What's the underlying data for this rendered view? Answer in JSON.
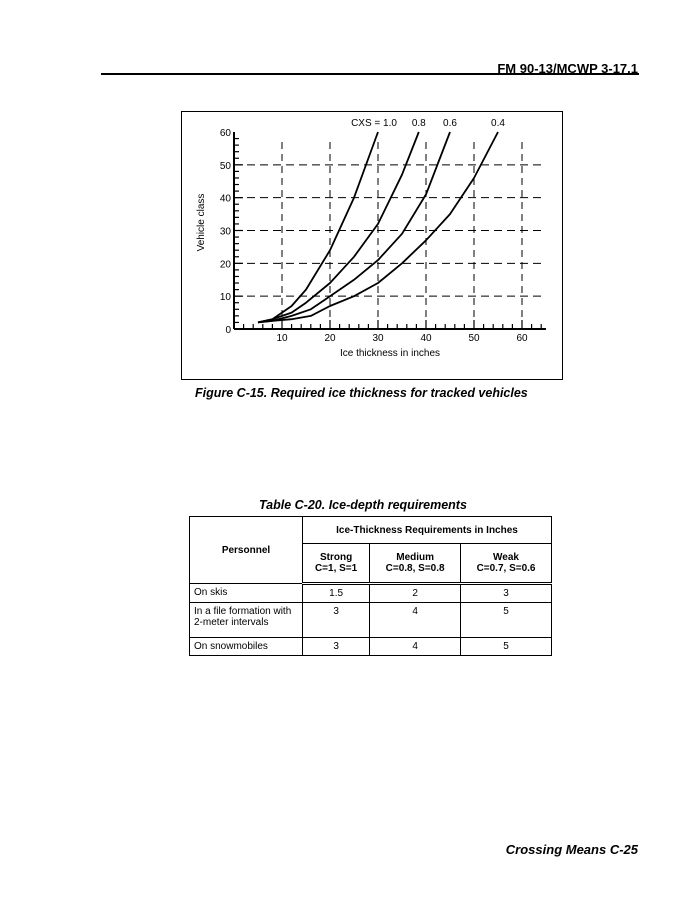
{
  "header": {
    "doc_id": "FM 90-13/MCWP 3-17.1"
  },
  "figure": {
    "caption": "Figure C-15.  Required ice thickness for tracked vehicles"
  },
  "chart_data": {
    "type": "line",
    "xlabel": "Ice thickness in inches",
    "ylabel": "Vehicle class",
    "xlim": [
      0,
      65
    ],
    "ylim": [
      0,
      60
    ],
    "xticks": [
      10,
      20,
      30,
      40,
      50,
      60
    ],
    "yticks": [
      0,
      10,
      20,
      30,
      40,
      50,
      60
    ],
    "grid": "dashed",
    "series": [
      {
        "name": "CXS = 1.0",
        "x": [
          5,
          8,
          12,
          15,
          20,
          25,
          30
        ],
        "y": [
          2,
          3,
          7,
          12,
          24,
          40,
          60
        ]
      },
      {
        "name": "0.8",
        "x": [
          5,
          8,
          12,
          15,
          20,
          25,
          30,
          35,
          38.5
        ],
        "y": [
          2,
          3,
          5,
          8,
          14,
          22,
          32,
          47,
          60
        ]
      },
      {
        "name": "0.6",
        "x": [
          5,
          8,
          12,
          16,
          20,
          25,
          30,
          35,
          40,
          45
        ],
        "y": [
          2,
          2.5,
          4,
          6,
          10,
          15,
          21,
          29,
          41,
          60
        ]
      },
      {
        "name": "0.4",
        "x": [
          5,
          8,
          12,
          16,
          20,
          25,
          30,
          35,
          40,
          45,
          50,
          55
        ],
        "y": [
          2,
          2.5,
          3,
          4,
          7,
          10,
          14,
          20,
          27,
          35,
          46,
          60
        ]
      }
    ]
  },
  "table": {
    "caption": "Table C-20. Ice-depth requirements",
    "personnel_header": "Personnel",
    "group_header": "Ice-Thickness Requirements in Inches",
    "columns": [
      {
        "line1": "Strong",
        "line2": "C=1, S=1"
      },
      {
        "line1": "Medium",
        "line2": "C=0.8, S=0.8"
      },
      {
        "line1": "Weak",
        "line2": "C=0.7, S=0.6"
      }
    ],
    "rows": [
      {
        "label": "On skis",
        "values": [
          "1.5",
          "2",
          "3"
        ]
      },
      {
        "label": "In a file formation with 2-meter intervals",
        "values": [
          "3",
          "4",
          "5"
        ]
      },
      {
        "label": "On snowmobiles",
        "values": [
          "3",
          "4",
          "5"
        ]
      }
    ]
  },
  "footer": {
    "text": "Crossing Means   C-25"
  }
}
